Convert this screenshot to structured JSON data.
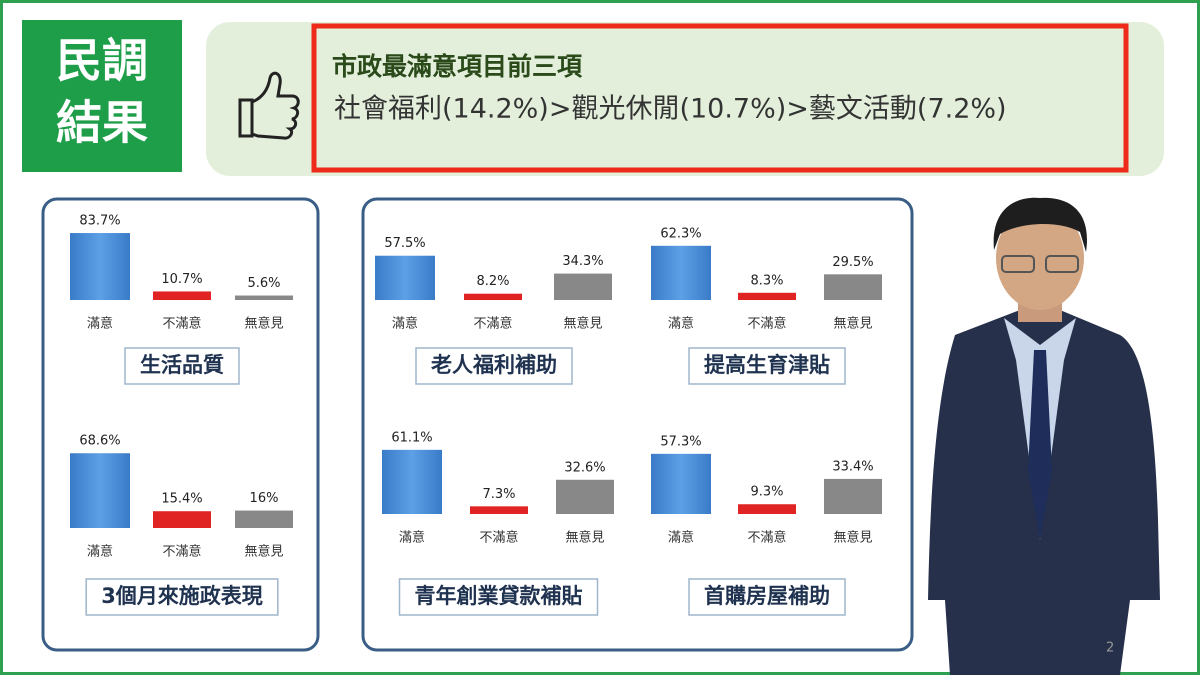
{
  "badge": {
    "lines": [
      "民調",
      "結果"
    ]
  },
  "headline": {
    "title": "市政最滿意項目前三項",
    "ranking": "社會福利(14.2%)>觀光休閒(10.7%)>藝文活動(7.2%)"
  },
  "page_number": "2",
  "chart_data": [
    {
      "type": "bar",
      "title": "生活品質",
      "categories": [
        "滿意",
        "不滿意",
        "無意見"
      ],
      "values": [
        83.7,
        10.7,
        5.6
      ],
      "value_labels": [
        "83.7%",
        "10.7%",
        "5.6%"
      ],
      "colors": [
        "#4a8fd6",
        "#e02424",
        "#888888"
      ],
      "ylim": [
        0,
        100
      ]
    },
    {
      "type": "bar",
      "title": "老人福利補助",
      "categories": [
        "滿意",
        "不滿意",
        "無意見"
      ],
      "values": [
        57.5,
        8.2,
        34.3
      ],
      "value_labels": [
        "57.5%",
        "8.2%",
        "34.3%"
      ],
      "colors": [
        "#4a8fd6",
        "#e02424",
        "#888888"
      ],
      "ylim": [
        0,
        100
      ]
    },
    {
      "type": "bar",
      "title": "提高生育津貼",
      "categories": [
        "滿意",
        "不滿意",
        "無意見"
      ],
      "values": [
        62.3,
        8.3,
        29.5
      ],
      "value_labels": [
        "62.3%",
        "8.3%",
        "29.5%"
      ],
      "colors": [
        "#4a8fd6",
        "#e02424",
        "#888888"
      ],
      "ylim": [
        0,
        100
      ]
    },
    {
      "type": "bar",
      "title": "3個月來施政表現",
      "categories": [
        "滿意",
        "不滿意",
        "無意見"
      ],
      "values": [
        68.6,
        15.4,
        16
      ],
      "value_labels": [
        "68.6%",
        "15.4%",
        "16%"
      ],
      "colors": [
        "#4a8fd6",
        "#e02424",
        "#888888"
      ],
      "ylim": [
        0,
        100
      ]
    },
    {
      "type": "bar",
      "title": "青年創業貸款補貼",
      "categories": [
        "滿意",
        "不滿意",
        "無意見"
      ],
      "values": [
        61.1,
        7.3,
        32.6
      ],
      "value_labels": [
        "61.1%",
        "7.3%",
        "32.6%"
      ],
      "colors": [
        "#4a8fd6",
        "#e02424",
        "#888888"
      ],
      "ylim": [
        0,
        100
      ]
    },
    {
      "type": "bar",
      "title": "首購房屋補助",
      "categories": [
        "滿意",
        "不滿意",
        "無意見"
      ],
      "values": [
        57.3,
        9.3,
        33.4
      ],
      "value_labels": [
        "57.3%",
        "9.3%",
        "33.4%"
      ],
      "colors": [
        "#4a8fd6",
        "#e02424",
        "#888888"
      ],
      "ylim": [
        0,
        100
      ]
    }
  ]
}
